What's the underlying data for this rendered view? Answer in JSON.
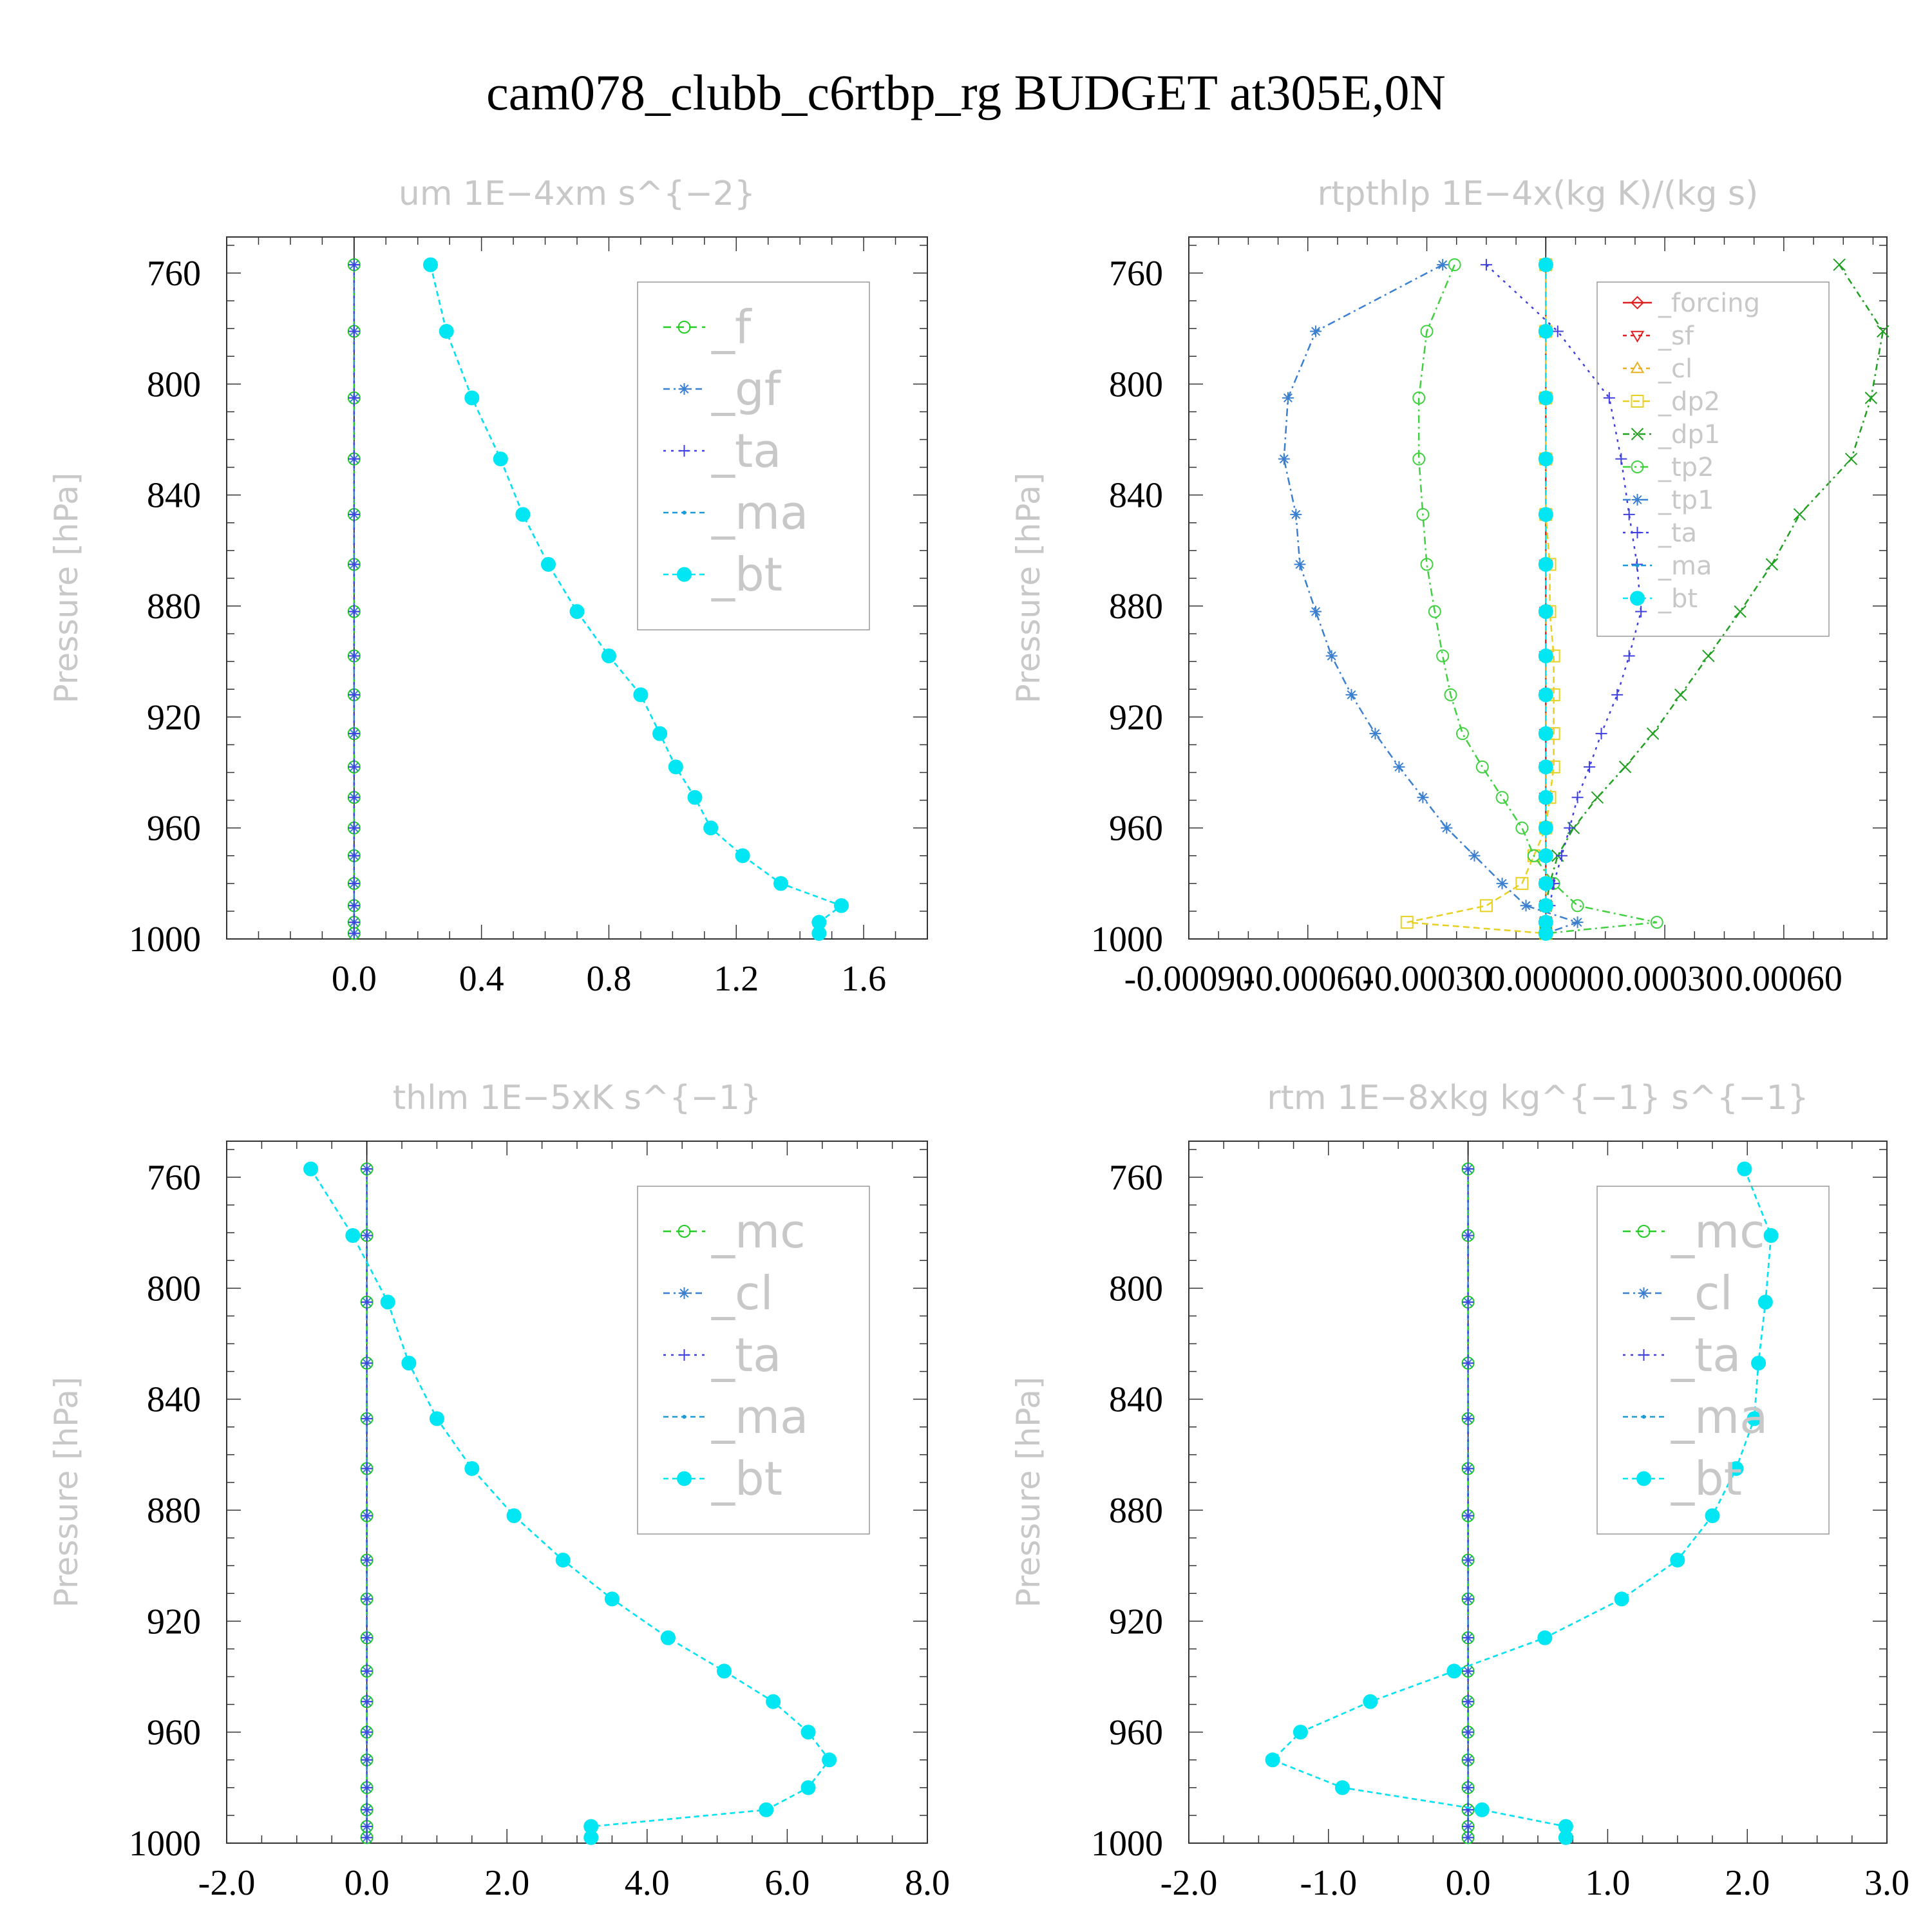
{
  "title": "cam078_clubb_c6rtbp_rg  BUDGET at305E,0N",
  "chart_data": [
    {
      "type": "line",
      "title": "um   1E−4xm s^{−2}",
      "ylabel": "Pressure [hPa]",
      "xlim": [
        -0.4,
        1.8
      ],
      "ylim": [
        1000,
        747
      ],
      "xticks": [
        "0.0",
        "0.4",
        "0.8",
        "1.2",
        "1.6"
      ],
      "xtick_values": [
        0.0,
        0.4,
        0.8,
        1.2,
        1.6
      ],
      "yticks": [
        "760",
        "800",
        "840",
        "880",
        "920",
        "960",
        "1000"
      ],
      "ytick_values": [
        760,
        800,
        840,
        880,
        920,
        960,
        1000
      ],
      "legend_position": "upper-right",
      "legend_size": "big",
      "pressure": [
        757,
        781,
        805,
        827,
        847,
        865,
        882,
        898,
        912,
        926,
        938,
        949,
        960,
        970,
        980,
        988,
        994,
        998
      ],
      "series": [
        {
          "name": "_f",
          "color": "#22cc22",
          "marker": "circle",
          "dash": "12,8",
          "values": [
            0,
            0,
            0,
            0,
            0,
            0,
            0,
            0,
            0,
            0,
            0,
            0,
            0,
            0,
            0,
            0,
            0,
            0
          ]
        },
        {
          "name": "_gf",
          "color": "#3a7fd0",
          "marker": "star",
          "dash": "10,6,3,6",
          "values": [
            0,
            0,
            0,
            0,
            0,
            0,
            0,
            0,
            0,
            0,
            0,
            0,
            0,
            0,
            0,
            0,
            0,
            0
          ]
        },
        {
          "name": "_ta",
          "color": "#4040e0",
          "marker": "plus",
          "dash": "4,8",
          "values": [
            0,
            0,
            0,
            0,
            0,
            0,
            0,
            0,
            0,
            0,
            0,
            0,
            0,
            0,
            0,
            0,
            0,
            0
          ]
        },
        {
          "name": "_ma",
          "color": "#1c9ad6",
          "marker": "dot",
          "dash": "8,6",
          "values": [
            0.24,
            0.29,
            0.37,
            0.46,
            0.53,
            0.61,
            0.7,
            0.8,
            0.9,
            0.96,
            1.01,
            1.07,
            1.12,
            1.22,
            1.34,
            1.53,
            1.46,
            1.46
          ]
        },
        {
          "name": "_bt",
          "color": "#00e6f2",
          "marker": "filled-circle",
          "dash": "8,6",
          "values": [
            0.24,
            0.29,
            0.37,
            0.46,
            0.53,
            0.61,
            0.7,
            0.8,
            0.9,
            0.96,
            1.01,
            1.07,
            1.12,
            1.22,
            1.34,
            1.53,
            1.46,
            1.46
          ]
        }
      ]
    },
    {
      "type": "line",
      "title": "rtpthlp   1E−4x(kg K)/(kg s)",
      "ylabel": "Pressure [hPa]",
      "xlim": [
        -0.0009,
        0.00086
      ],
      "ylim": [
        1000,
        747
      ],
      "xticks": [
        "-0.00090",
        "-0.00060",
        "-0.00030",
        "0.00000",
        "0.00030",
        "0.00060"
      ],
      "xtick_values": [
        -0.0009,
        -0.0006,
        -0.0003,
        0.0,
        0.0003,
        0.0006
      ],
      "yticks": [
        "760",
        "800",
        "840",
        "880",
        "920",
        "960",
        "1000"
      ],
      "ytick_values": [
        760,
        800,
        840,
        880,
        920,
        960,
        1000
      ],
      "legend_position": "upper-right",
      "legend_size": "small",
      "pressure": [
        757,
        781,
        805,
        827,
        847,
        865,
        882,
        898,
        912,
        926,
        938,
        949,
        960,
        970,
        980,
        988,
        994,
        998
      ],
      "series": [
        {
          "name": "_forcing",
          "color": "#e02020",
          "marker": "diamond",
          "dash": "",
          "values": [
            0,
            0,
            0,
            0,
            0,
            0,
            0,
            0,
            0,
            0,
            0,
            0,
            0,
            0,
            0,
            0,
            0,
            0
          ]
        },
        {
          "name": "_sf",
          "color": "#e02020",
          "marker": "triangle-down",
          "dash": "6,6",
          "values": [
            0,
            0,
            0,
            0,
            0,
            0,
            0,
            0,
            0,
            0,
            0,
            0,
            0,
            0,
            0,
            0,
            0,
            0
          ]
        },
        {
          "name": "_cl",
          "color": "#e8b020",
          "marker": "triangle-up",
          "dash": "6,6",
          "values": [
            0,
            0,
            0,
            0,
            0,
            0,
            0,
            0,
            0,
            0,
            0,
            0,
            0,
            0,
            0,
            0,
            0,
            0
          ]
        },
        {
          "name": "_dp2",
          "color": "#e8d020",
          "marker": "square",
          "dash": "10,6",
          "values": [
            0,
            0,
            0,
            0,
            0,
            1e-05,
            1e-05,
            2e-05,
            2e-05,
            2e-05,
            2e-05,
            1e-05,
            0,
            -3e-05,
            -6e-05,
            -0.00015,
            -0.00035,
            0
          ]
        },
        {
          "name": "_dp1",
          "color": "#20a020",
          "marker": "x",
          "dash": "10,6,3,6",
          "values": [
            0.00074,
            0.00085,
            0.00082,
            0.00077,
            0.00064,
            0.00057,
            0.00049,
            0.00041,
            0.00034,
            0.00027,
            0.0002,
            0.00013,
            7e-05,
            3e-05,
            1e-05,
            0,
            0,
            0
          ]
        },
        {
          "name": "_tp2",
          "color": "#40d040",
          "marker": "circle",
          "dash": "12,6,3,6",
          "values": [
            -0.00023,
            -0.0003,
            -0.00032,
            -0.00032,
            -0.00031,
            -0.0003,
            -0.00028,
            -0.00026,
            -0.00024,
            -0.00021,
            -0.00016,
            -0.00011,
            -6e-05,
            -3e-05,
            2e-05,
            8e-05,
            0.00028,
            0
          ]
        },
        {
          "name": "_tp1",
          "color": "#3a7fd0",
          "marker": "star",
          "dash": "12,6,3,6",
          "values": [
            -0.00026,
            -0.00058,
            -0.00065,
            -0.00066,
            -0.00063,
            -0.00062,
            -0.00058,
            -0.00054,
            -0.00049,
            -0.00043,
            -0.00037,
            -0.00031,
            -0.00025,
            -0.00018,
            -0.00011,
            -5e-05,
            8e-05,
            0
          ]
        },
        {
          "name": "_ta",
          "color": "#4040e0",
          "marker": "plus",
          "dash": "4,8",
          "values": [
            -0.00015,
            3e-05,
            0.00016,
            0.00019,
            0.00021,
            0.00023,
            0.00024,
            0.00021,
            0.00018,
            0.00014,
            0.00011,
            8e-05,
            6e-05,
            4e-05,
            2e-05,
            1e-05,
            0,
            0
          ]
        },
        {
          "name": "_ma",
          "color": "#1c9ad6",
          "marker": "dot",
          "dash": "8,6",
          "values": [
            0,
            0,
            0,
            0,
            0,
            0,
            0,
            0,
            0,
            0,
            0,
            0,
            0,
            0,
            0,
            0,
            0,
            0
          ]
        },
        {
          "name": "_bt",
          "color": "#00e6f2",
          "marker": "filled-circle",
          "dash": "8,6",
          "values": [
            0,
            0,
            0,
            0,
            0,
            0,
            0,
            0,
            0,
            0,
            0,
            0,
            0,
            0,
            0,
            0,
            0,
            0
          ]
        }
      ]
    },
    {
      "type": "line",
      "title": "thlm   1E−5xK s^{−1}",
      "ylabel": "Pressure [hPa]",
      "xlim": [
        -2.0,
        8.0
      ],
      "ylim": [
        1000,
        747
      ],
      "xticks": [
        "-2.0",
        "0.0",
        "2.0",
        "4.0",
        "6.0",
        "8.0"
      ],
      "xtick_values": [
        -2.0,
        0.0,
        2.0,
        4.0,
        6.0,
        8.0
      ],
      "yticks": [
        "760",
        "800",
        "840",
        "880",
        "920",
        "960",
        "1000"
      ],
      "ytick_values": [
        760,
        800,
        840,
        880,
        920,
        960,
        1000
      ],
      "legend_position": "upper-right",
      "legend_size": "big",
      "pressure": [
        757,
        781,
        805,
        827,
        847,
        865,
        882,
        898,
        912,
        926,
        938,
        949,
        960,
        970,
        980,
        988,
        994,
        998
      ],
      "series": [
        {
          "name": "_mc",
          "color": "#22cc22",
          "marker": "circle",
          "dash": "12,8",
          "values": [
            0,
            0,
            0,
            0,
            0,
            0,
            0,
            0,
            0,
            0,
            0,
            0,
            0,
            0,
            0,
            0,
            0,
            0
          ]
        },
        {
          "name": "_cl",
          "color": "#3a7fd0",
          "marker": "star",
          "dash": "10,6,3,6",
          "values": [
            0,
            0,
            0,
            0,
            0,
            0,
            0,
            0,
            0,
            0,
            0,
            0,
            0,
            0,
            0,
            0,
            0,
            0
          ]
        },
        {
          "name": "_ta",
          "color": "#4040e0",
          "marker": "plus",
          "dash": "4,8",
          "values": [
            0,
            0,
            0,
            0,
            0,
            0,
            0,
            0,
            0,
            0,
            0,
            0,
            0,
            0,
            0,
            0,
            0,
            0
          ]
        },
        {
          "name": "_ma",
          "color": "#1c9ad6",
          "marker": "dot",
          "dash": "8,6",
          "values": [
            -0.8,
            -0.2,
            0.3,
            0.6,
            1.0,
            1.5,
            2.1,
            2.8,
            3.5,
            4.3,
            5.1,
            5.8,
            6.3,
            6.6,
            6.3,
            5.7,
            3.2,
            3.2
          ]
        },
        {
          "name": "_bt",
          "color": "#00e6f2",
          "marker": "filled-circle",
          "dash": "8,6",
          "values": [
            -0.8,
            -0.2,
            0.3,
            0.6,
            1.0,
            1.5,
            2.1,
            2.8,
            3.5,
            4.3,
            5.1,
            5.8,
            6.3,
            6.6,
            6.3,
            5.7,
            3.2,
            3.2
          ]
        }
      ]
    },
    {
      "type": "line",
      "title": "rtm   1E−8xkg kg^{−1} s^{−1}",
      "ylabel": "Pressure [hPa]",
      "xlim": [
        -2.0,
        3.0
      ],
      "ylim": [
        1000,
        747
      ],
      "xticks": [
        "-2.0",
        "-1.0",
        "0.0",
        "1.0",
        "2.0",
        "3.0"
      ],
      "xtick_values": [
        -2.0,
        -1.0,
        0.0,
        1.0,
        2.0,
        3.0
      ],
      "yticks": [
        "760",
        "800",
        "840",
        "880",
        "920",
        "960",
        "1000"
      ],
      "ytick_values": [
        760,
        800,
        840,
        880,
        920,
        960,
        1000
      ],
      "legend_position": "upper-right",
      "legend_size": "big",
      "pressure": [
        757,
        781,
        805,
        827,
        847,
        865,
        882,
        898,
        912,
        926,
        938,
        949,
        960,
        970,
        980,
        988,
        994,
        998
      ],
      "series": [
        {
          "name": "_mc",
          "color": "#22cc22",
          "marker": "circle",
          "dash": "12,8",
          "values": [
            0,
            0,
            0,
            0,
            0,
            0,
            0,
            0,
            0,
            0,
            0,
            0,
            0,
            0,
            0,
            0,
            0,
            0
          ]
        },
        {
          "name": "_cl",
          "color": "#3a7fd0",
          "marker": "star",
          "dash": "10,6,3,6",
          "values": [
            0,
            0,
            0,
            0,
            0,
            0,
            0,
            0,
            0,
            0,
            0,
            0,
            0,
            0,
            0,
            0,
            0,
            0
          ]
        },
        {
          "name": "_ta",
          "color": "#4040e0",
          "marker": "plus",
          "dash": "4,8",
          "values": [
            0,
            0,
            0,
            0,
            0,
            0,
            0,
            0,
            0,
            0,
            0,
            0,
            0,
            0,
            0,
            0,
            0,
            0
          ]
        },
        {
          "name": "_ma",
          "color": "#1c9ad6",
          "marker": "dot",
          "dash": "8,6",
          "values": [
            1.98,
            2.17,
            2.13,
            2.08,
            2.05,
            1.92,
            1.75,
            1.5,
            1.1,
            0.55,
            -0.1,
            -0.7,
            -1.2,
            -1.4,
            -0.9,
            0.1,
            0.7,
            0.7
          ]
        },
        {
          "name": "_bt",
          "color": "#00e6f2",
          "marker": "filled-circle",
          "dash": "8,6",
          "values": [
            1.98,
            2.17,
            2.13,
            2.08,
            2.05,
            1.92,
            1.75,
            1.5,
            1.1,
            0.55,
            -0.1,
            -0.7,
            -1.2,
            -1.4,
            -0.9,
            0.1,
            0.7,
            0.7
          ]
        }
      ]
    }
  ]
}
